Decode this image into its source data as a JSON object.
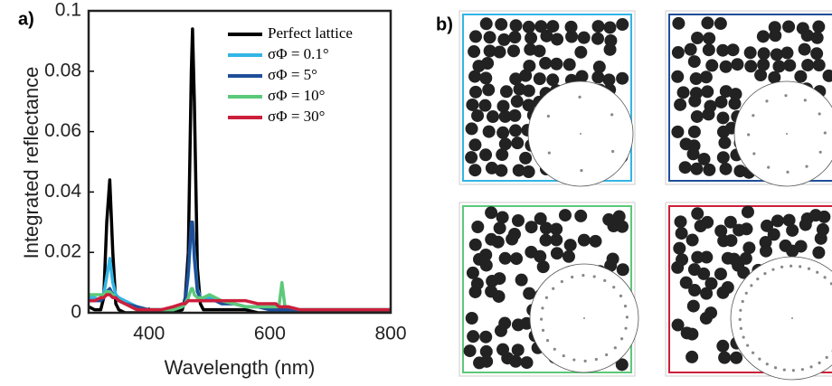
{
  "chart_data": {
    "type": "line",
    "panel_a": "a)",
    "panel_b": "b)",
    "xlabel": "Wavelength (nm)",
    "ylabel": "Integrated reflectance",
    "xlim": [
      300,
      800
    ],
    "ylim": [
      0,
      0.1
    ],
    "xticks": [
      400,
      600,
      800
    ],
    "yticks": [
      0,
      0.02,
      0.04,
      0.06,
      0.08,
      0.1
    ],
    "grid": false,
    "legend": "upper right",
    "x": [
      300,
      310,
      320,
      325,
      330,
      335,
      340,
      345,
      350,
      360,
      380,
      400,
      420,
      440,
      455,
      460,
      465,
      470,
      472,
      475,
      480,
      485,
      490,
      500,
      510,
      520,
      540,
      560,
      580,
      600,
      610,
      615,
      620,
      625,
      630,
      650,
      700,
      750,
      800
    ],
    "series": [
      {
        "name": "Perfect lattice",
        "color": "#000000",
        "values": [
          0.002,
          0.001,
          0.001,
          0.005,
          0.03,
          0.044,
          0.02,
          0.003,
          0.001,
          0,
          0,
          0,
          0,
          0,
          0.001,
          0.005,
          0.02,
          0.08,
          0.094,
          0.07,
          0.015,
          0.003,
          0.001,
          0.001,
          0.001,
          0.001,
          0.001,
          0.001,
          0,
          0,
          0,
          0,
          0,
          0,
          0,
          0,
          0,
          0,
          0
        ]
      },
      {
        "name": "σΦ = 0.1°",
        "color": "#33b5e5",
        "values": [
          0.005,
          0.005,
          0.004,
          0.006,
          0.012,
          0.018,
          0.01,
          0.006,
          0.005,
          0.004,
          0.002,
          0.001,
          0.001,
          0.001,
          0.002,
          0.004,
          0.012,
          0.028,
          0.029,
          0.02,
          0.008,
          0.005,
          0.004,
          0.005,
          0.004,
          0.003,
          0.003,
          0.002,
          0.002,
          0.001,
          0.001,
          0.001,
          0.001,
          0.001,
          0.001,
          0.001,
          0.001,
          0.001,
          0.001
        ]
      },
      {
        "name": "σΦ = 5°",
        "color": "#1f4e99",
        "values": [
          0.004,
          0.004,
          0.004,
          0.005,
          0.007,
          0.008,
          0.006,
          0.005,
          0.004,
          0.003,
          0.002,
          0.001,
          0.001,
          0.001,
          0.002,
          0.004,
          0.014,
          0.03,
          0.03,
          0.018,
          0.007,
          0.005,
          0.004,
          0.004,
          0.004,
          0.003,
          0.003,
          0.002,
          0.002,
          0.001,
          0.001,
          0.001,
          0.001,
          0.001,
          0.001,
          0.001,
          0.001,
          0.001,
          0.001
        ]
      },
      {
        "name": "σΦ = 10°",
        "color": "#5cc97a",
        "values": [
          0.006,
          0.006,
          0.006,
          0.006,
          0.007,
          0.007,
          0.006,
          0.005,
          0.004,
          0.003,
          0.001,
          0.001,
          0.001,
          0.001,
          0.002,
          0.003,
          0.005,
          0.008,
          0.008,
          0.006,
          0.005,
          0.005,
          0.005,
          0.006,
          0.005,
          0.004,
          0.003,
          0.002,
          0.002,
          0.002,
          0.002,
          0.002,
          0.01,
          0.002,
          0.002,
          0.001,
          0.001,
          0.001,
          0.001
        ]
      },
      {
        "name": "σΦ = 30°",
        "color": "#cc1f3c",
        "values": [
          0.004,
          0.004,
          0.005,
          0.005,
          0.006,
          0.006,
          0.005,
          0.005,
          0.004,
          0.003,
          0.001,
          0.001,
          0.001,
          0.002,
          0.003,
          0.003,
          0.004,
          0.004,
          0.004,
          0.004,
          0.004,
          0.004,
          0.004,
          0.004,
          0.004,
          0.004,
          0.004,
          0.004,
          0.003,
          0.003,
          0.003,
          0.002,
          0.002,
          0.002,
          0.002,
          0.001,
          0.001,
          0.001,
          0.001
        ]
      }
    ]
  }
}
